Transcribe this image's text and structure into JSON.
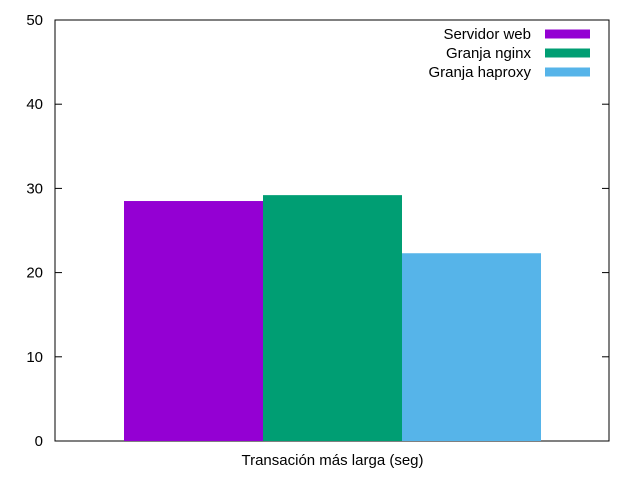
{
  "chart_data": {
    "type": "bar",
    "categories": [
      "Transación más larga (seg)"
    ],
    "series": [
      {
        "name": "Servidor web",
        "values": [
          28.5
        ],
        "color": "#9400d3"
      },
      {
        "name": "Granja nginx",
        "values": [
          29.2
        ],
        "color": "#009e73"
      },
      {
        "name": "Granja haproxy",
        "values": [
          22.3
        ],
        "color": "#56b4e9"
      }
    ],
    "ylim": [
      0,
      50
    ],
    "yticks": [
      0,
      10,
      20,
      30,
      40,
      50
    ],
    "legend_position": "top-right",
    "grid": false
  }
}
